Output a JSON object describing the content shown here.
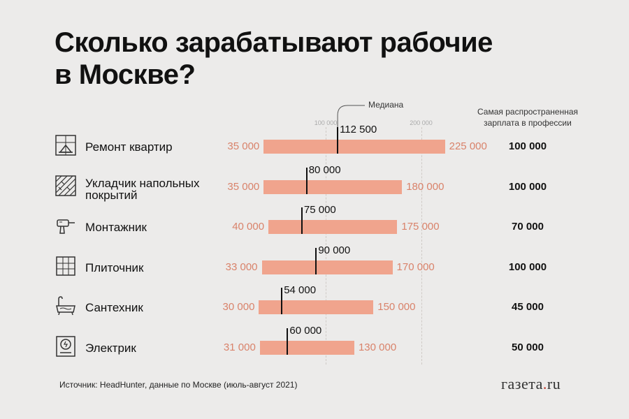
{
  "title_lines": [
    "Сколько зарабатывают рабочие",
    "в Москве?"
  ],
  "column_header": "Самая распространенная зарплата в профессии",
  "median_label": "Медиана",
  "axis_ticks": [
    "100 000",
    "200 000"
  ],
  "source": "Источник: HeadHunter, данные по Москве (июль-август 2021)",
  "logo": {
    "main": "газета",
    "dot": ".",
    "tld": "ru"
  },
  "colors": {
    "bar": "#f0a48d",
    "range_text": "#d9826a",
    "median": "#111111",
    "background": "#ecebea"
  },
  "chart_data": {
    "type": "bar",
    "subtype": "range-with-median",
    "x_axis": {
      "ticks": [
        100000,
        200000
      ],
      "grid": true
    },
    "categories": [
      "Ремонт квартир",
      "Укладчик напольных покрытий",
      "Монтажник",
      "Плиточник",
      "Сантехник",
      "Электрик"
    ],
    "rows": [
      {
        "name_lines": [
          "Ремонт квартир"
        ],
        "icon": "room-renovation-icon",
        "min": 35000,
        "max": 225000,
        "median": 112500,
        "common": 100000,
        "min_label": "35 000",
        "max_label": "225 000",
        "median_label": "112 500",
        "common_label": "100 000"
      },
      {
        "name_lines": [
          "Укладчик напольных",
          "покрытий"
        ],
        "icon": "parquet-floor-icon",
        "min": 35000,
        "max": 180000,
        "median": 80000,
        "common": 100000,
        "min_label": "35 000",
        "max_label": "180 000",
        "median_label": "80 000",
        "common_label": "100 000"
      },
      {
        "name_lines": [
          "Монтажник"
        ],
        "icon": "drill-icon",
        "min": 40000,
        "max": 175000,
        "median": 75000,
        "common": 70000,
        "min_label": "40 000",
        "max_label": "175 000",
        "median_label": "75 000",
        "common_label": "70 000"
      },
      {
        "name_lines": [
          "Плиточник"
        ],
        "icon": "tile-icon",
        "min": 33000,
        "max": 170000,
        "median": 90000,
        "common": 100000,
        "min_label": "33 000",
        "max_label": "170 000",
        "median_label": "90 000",
        "common_label": "100 000"
      },
      {
        "name_lines": [
          "Сантехник"
        ],
        "icon": "bathtub-icon",
        "min": 30000,
        "max": 150000,
        "median": 54000,
        "common": 45000,
        "min_label": "30 000",
        "max_label": "150 000",
        "median_label": "54 000",
        "common_label": "45 000"
      },
      {
        "name_lines": [
          "Электрик"
        ],
        "icon": "electric-panel-icon",
        "min": 31000,
        "max": 130000,
        "median": 60000,
        "common": 50000,
        "min_label": "31 000",
        "max_label": "130 000",
        "median_label": "60 000",
        "common_label": "50 000"
      }
    ]
  }
}
